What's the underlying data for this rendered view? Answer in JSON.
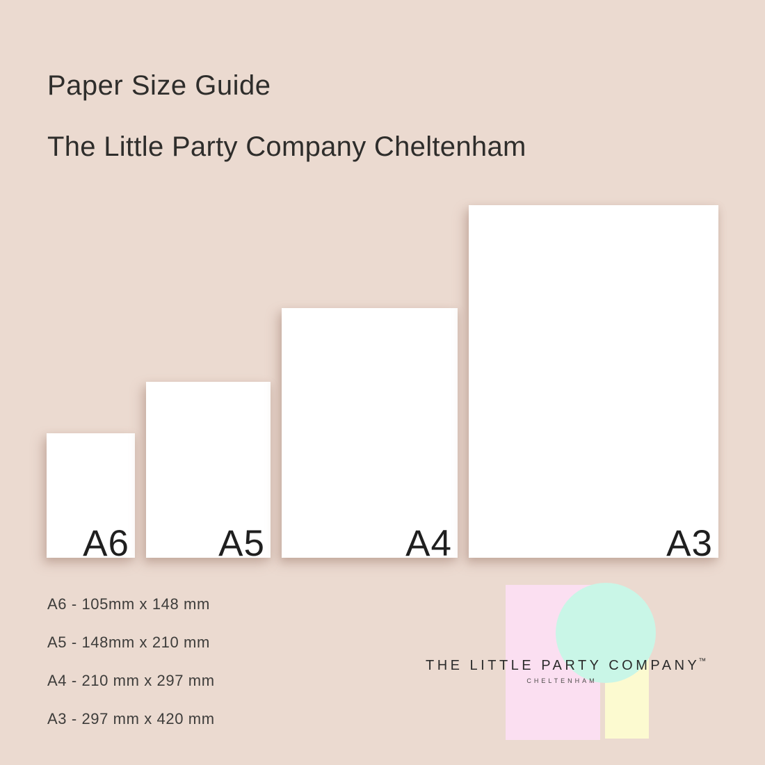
{
  "header": {
    "title": "Paper Size Guide",
    "subtitle": "The Little Party Company Cheltenham"
  },
  "papers": [
    {
      "label": "A6"
    },
    {
      "label": "A5"
    },
    {
      "label": "A4"
    },
    {
      "label": "A3"
    }
  ],
  "specs": [
    "A6 - 105mm x 148 mm",
    "A5 - 148mm x 210 mm",
    "A4 - 210 mm x 297 mm",
    "A3 - 297 mm x 420 mm"
  ],
  "logo": {
    "name": "THE LITTLE PARTY COMPANY",
    "trademark": "™",
    "location": "CHELTENHAM"
  },
  "colors": {
    "background": "#EBDAD0",
    "paper": "#FFFFFF",
    "heading_text": "#2E2D2B",
    "label_text": "#1F1F1F",
    "spec_text": "#3D3C3A",
    "logo_pink": "#FBDFF1",
    "logo_mint": "#C9F6E7",
    "logo_yellow": "#FCFAD0",
    "logo_text": "#2B2B2B"
  }
}
